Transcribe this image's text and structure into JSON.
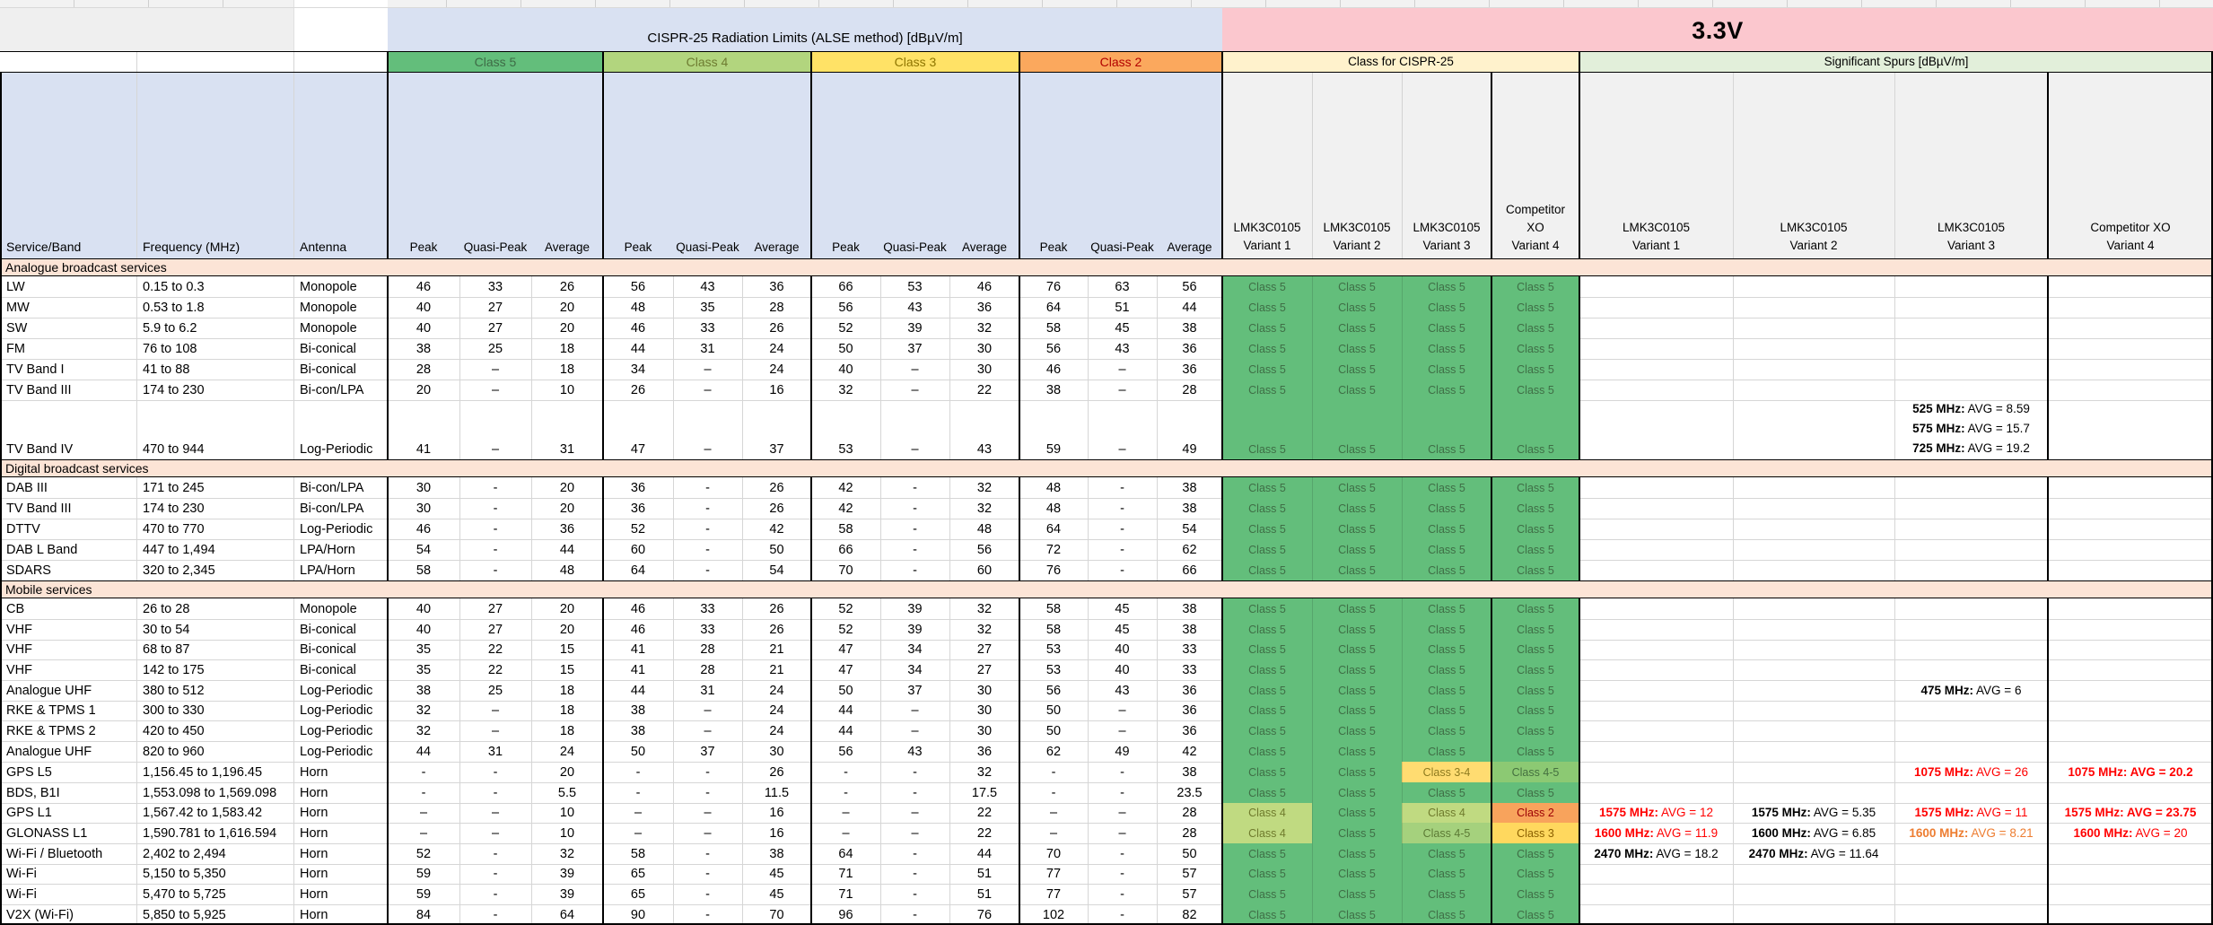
{
  "header": {
    "cispr_title": "CISPR-25 Radiation Limits (ALSE method) [dBµV/m]",
    "voltage_label": "3.3V",
    "class_groups": [
      "Class 5",
      "Class 4",
      "Class 3",
      "Class 2"
    ],
    "class_for_cispr_label": "Class for CISPR-25",
    "spurs_label": "Significant Spurs  [dBµV/m]",
    "left_columns": [
      "Service/Band",
      "Frequency (MHz)",
      "Antenna"
    ],
    "limit_sublabels": [
      "Peak",
      "Quasi-Peak",
      "Average"
    ],
    "class_variant_headers": [
      [
        "LMK3C0105",
        "Variant 1"
      ],
      [
        "LMK3C0105",
        "Variant 2"
      ],
      [
        "LMK3C0105",
        "Variant 3"
      ],
      [
        "Competitor",
        "XO",
        "Variant 4"
      ]
    ],
    "spur_variant_headers": [
      [
        "LMK3C0105",
        "Variant 1"
      ],
      [
        "LMK3C0105",
        "Variant 2"
      ],
      [
        "LMK3C0105",
        "Variant 3"
      ],
      [
        "Competitor XO",
        "Variant 4"
      ]
    ]
  },
  "colors": {
    "lavender": "#D9E1F2",
    "pink": "#FBC7CE",
    "peach": "#FCE4D6",
    "cream": "#FFF2CC",
    "spur_header_green": "#E2EFDA",
    "variant_area_gray": "#F1F1F1",
    "grid_light": "#D6D6D6",
    "black": "#000000",
    "spur_red": "#FF0000",
    "spur_orange": "#ED7D31",
    "spur_black": "#000000"
  },
  "group_header_styles": {
    "h5": {
      "bg": "#63BE7B",
      "fg": "#3E6B46"
    },
    "h4": {
      "bg": "#B2D57E",
      "fg": "#6E7C31"
    },
    "h3": {
      "bg": "#FFE266",
      "fg": "#8E7500"
    },
    "h2": {
      "bg": "#FBA85D",
      "fg": "#B20000"
    }
  },
  "class_styles": {
    "c5": {
      "label": "Class 5",
      "bg": "#63BE7B",
      "fg": "#3F6E46"
    },
    "c4": {
      "label": "Class 4",
      "bg": "#C0DA81",
      "fg": "#6F7B2D"
    },
    "c34": {
      "label": "Class 3-4",
      "bg": "#FFDC71",
      "fg": "#8D7A1F"
    },
    "c45a": {
      "label": "Class 4-5",
      "bg": "#8CC973",
      "fg": "#44703F"
    },
    "c45b": {
      "label": "Class 4-5",
      "bg": "#A5D17D",
      "fg": "#5C7A35"
    },
    "c2": {
      "label": "Class 2",
      "bg": "#F8A35C",
      "fg": "#9C0006"
    },
    "c3": {
      "label": "Class 3",
      "bg": "#FFD85E",
      "fg": "#8A5F00"
    }
  },
  "sections": [
    {
      "title": "Analogue broadcast services",
      "rows": [
        {
          "service": "LW",
          "freq": "0.15 to 0.3",
          "antenna": "Monopole",
          "limits": [
            "46",
            "33",
            "26",
            "56",
            "43",
            "36",
            "66",
            "53",
            "46",
            "76",
            "63",
            "56"
          ],
          "classes": [
            "c5",
            "c5",
            "c5",
            "c5"
          ]
        },
        {
          "service": "MW",
          "freq": "0.53 to 1.8",
          "antenna": "Monopole",
          "limits": [
            "40",
            "27",
            "20",
            "48",
            "35",
            "28",
            "56",
            "43",
            "36",
            "64",
            "51",
            "44"
          ],
          "classes": [
            "c5",
            "c5",
            "c5",
            "c5"
          ]
        },
        {
          "service": "SW",
          "freq": "5.9 to 6.2",
          "antenna": "Monopole",
          "limits": [
            "40",
            "27",
            "20",
            "46",
            "33",
            "26",
            "52",
            "39",
            "32",
            "58",
            "45",
            "38"
          ],
          "classes": [
            "c5",
            "c5",
            "c5",
            "c5"
          ]
        },
        {
          "service": "FM",
          "freq": "76 to 108",
          "antenna": "Bi-conical",
          "limits": [
            "38",
            "25",
            "18",
            "44",
            "31",
            "24",
            "50",
            "37",
            "30",
            "56",
            "43",
            "36"
          ],
          "classes": [
            "c5",
            "c5",
            "c5",
            "c5"
          ]
        },
        {
          "service": "TV Band I",
          "freq": "41 to 88",
          "antenna": "Bi-conical",
          "limits": [
            "28",
            "–",
            "18",
            "34",
            "–",
            "24",
            "40",
            "–",
            "30",
            "46",
            "–",
            "36"
          ],
          "classes": [
            "c5",
            "c5",
            "c5",
            "c5"
          ]
        },
        {
          "service": "TV Band III",
          "freq": "174 to 230",
          "antenna": "Bi-con/LPA",
          "limits": [
            "20",
            "–",
            "10",
            "26",
            "–",
            "16",
            "32",
            "–",
            "22",
            "38",
            "–",
            "28"
          ],
          "classes": [
            "c5",
            "c5",
            "c5",
            "c5"
          ]
        },
        {
          "service": "TV Band IV",
          "freq": "470 to 944",
          "antenna": "Log-Periodic",
          "limits": [
            "41",
            "–",
            "31",
            "47",
            "–",
            "37",
            "53",
            "–",
            "43",
            "59",
            "–",
            "49"
          ],
          "classes": [
            "c5",
            "c5",
            "c5",
            "c5"
          ],
          "spurs": [
            [],
            [],
            [
              {
                "f": "525 MHz:",
                "v": "AVG = 8.59",
                "c": "k"
              },
              {
                "f": "575 MHz:",
                "v": "AVG = 15.7",
                "c": "k"
              },
              {
                "f": "725 MHz:",
                "v": "AVG = 19.2",
                "c": "k"
              }
            ],
            []
          ]
        }
      ]
    },
    {
      "title": "Digital broadcast services",
      "rows": [
        {
          "service": "DAB III",
          "freq": "171 to 245",
          "antenna": "Bi-con/LPA",
          "limits": [
            "30",
            "-",
            "20",
            "36",
            "-",
            "26",
            "42",
            "-",
            "32",
            "48",
            "-",
            "38"
          ],
          "classes": [
            "c5",
            "c5",
            "c5",
            "c5"
          ]
        },
        {
          "service": "TV Band III",
          "freq": "174 to 230",
          "antenna": "Bi-con/LPA",
          "limits": [
            "30",
            "-",
            "20",
            "36",
            "-",
            "26",
            "42",
            "-",
            "32",
            "48",
            "-",
            "38"
          ],
          "classes": [
            "c5",
            "c5",
            "c5",
            "c5"
          ]
        },
        {
          "service": "DTTV",
          "freq": "470 to 770",
          "antenna": "Log-Periodic",
          "limits": [
            "46",
            "-",
            "36",
            "52",
            "-",
            "42",
            "58",
            "-",
            "48",
            "64",
            "-",
            "54"
          ],
          "classes": [
            "c5",
            "c5",
            "c5",
            "c5"
          ]
        },
        {
          "service": "DAB L Band",
          "freq": "447 to 1,494",
          "antenna": "LPA/Horn",
          "limits": [
            "54",
            "-",
            "44",
            "60",
            "-",
            "50",
            "66",
            "-",
            "56",
            "72",
            "-",
            "62"
          ],
          "classes": [
            "c5",
            "c5",
            "c5",
            "c5"
          ]
        },
        {
          "service": "SDARS",
          "freq": "320 to 2,345",
          "antenna": "LPA/Horn",
          "limits": [
            "58",
            "-",
            "48",
            "64",
            "-",
            "54",
            "70",
            "-",
            "60",
            "76",
            "-",
            "66"
          ],
          "classes": [
            "c5",
            "c5",
            "c5",
            "c5"
          ]
        }
      ]
    },
    {
      "title": "Mobile services",
      "rows": [
        {
          "service": "CB",
          "freq": "26 to 28",
          "antenna": "Monopole",
          "limits": [
            "40",
            "27",
            "20",
            "46",
            "33",
            "26",
            "52",
            "39",
            "32",
            "58",
            "45",
            "38"
          ],
          "classes": [
            "c5",
            "c5",
            "c5",
            "c5"
          ]
        },
        {
          "service": "VHF",
          "freq": "30 to 54",
          "antenna": "Bi-conical",
          "limits": [
            "40",
            "27",
            "20",
            "46",
            "33",
            "26",
            "52",
            "39",
            "32",
            "58",
            "45",
            "38"
          ],
          "classes": [
            "c5",
            "c5",
            "c5",
            "c5"
          ]
        },
        {
          "service": "VHF",
          "freq": "68 to 87",
          "antenna": "Bi-conical",
          "limits": [
            "35",
            "22",
            "15",
            "41",
            "28",
            "21",
            "47",
            "34",
            "27",
            "53",
            "40",
            "33"
          ],
          "classes": [
            "c5",
            "c5",
            "c5",
            "c5"
          ]
        },
        {
          "service": "VHF",
          "freq": "142 to 175",
          "antenna": "Bi-conical",
          "limits": [
            "35",
            "22",
            "15",
            "41",
            "28",
            "21",
            "47",
            "34",
            "27",
            "53",
            "40",
            "33"
          ],
          "classes": [
            "c5",
            "c5",
            "c5",
            "c5"
          ]
        },
        {
          "service": "Analogue UHF",
          "freq": "380 to 512",
          "antenna": "Log-Periodic",
          "limits": [
            "38",
            "25",
            "18",
            "44",
            "31",
            "24",
            "50",
            "37",
            "30",
            "56",
            "43",
            "36"
          ],
          "classes": [
            "c5",
            "c5",
            "c5",
            "c5"
          ],
          "spurs": [
            [],
            [],
            [
              {
                "f": "475 MHz:",
                "v": "AVG = 6",
                "c": "k"
              }
            ],
            []
          ]
        },
        {
          "service": "RKE & TPMS 1",
          "freq": "300 to 330",
          "antenna": "Log-Periodic",
          "limits": [
            "32",
            "–",
            "18",
            "38",
            "–",
            "24",
            "44",
            "–",
            "30",
            "50",
            "–",
            "36"
          ],
          "classes": [
            "c5",
            "c5",
            "c5",
            "c5"
          ]
        },
        {
          "service": "RKE & TPMS 2",
          "freq": "420 to 450",
          "antenna": "Log-Periodic",
          "limits": [
            "32",
            "–",
            "18",
            "38",
            "–",
            "24",
            "44",
            "–",
            "30",
            "50",
            "–",
            "36"
          ],
          "classes": [
            "c5",
            "c5",
            "c5",
            "c5"
          ]
        },
        {
          "service": "Analogue UHF",
          "freq": "820 to 960",
          "antenna": "Log-Periodic",
          "limits": [
            "44",
            "31",
            "24",
            "50",
            "37",
            "30",
            "56",
            "43",
            "36",
            "62",
            "49",
            "42"
          ],
          "classes": [
            "c5",
            "c5",
            "c5",
            "c5"
          ]
        },
        {
          "service": "GPS L5",
          "freq": "1,156.45 to 1,196.45",
          "antenna": "Horn",
          "limits": [
            "-",
            "-",
            "20",
            "-",
            "-",
            "26",
            "-",
            "-",
            "32",
            "-",
            "-",
            "38"
          ],
          "classes": [
            "c5",
            "c5",
            "c34",
            "c45a"
          ],
          "spurs": [
            [],
            [],
            [
              {
                "f": "1075 MHz:",
                "v": "AVG = 26",
                "c": "r"
              }
            ],
            [
              {
                "f": "1075 MHz:",
                "v": "AVG = 20.2",
                "c": "r",
                "b": true
              }
            ]
          ]
        },
        {
          "service": "BDS, B1I",
          "freq": "1,553.098 to 1,569.098",
          "antenna": "Horn",
          "limits": [
            "-",
            "-",
            "5.5",
            "-",
            "-",
            "11.5",
            "-",
            "-",
            "17.5",
            "-",
            "-",
            "23.5"
          ],
          "classes": [
            "c5",
            "c5",
            "c5",
            "c5"
          ]
        },
        {
          "service": "GPS L1",
          "freq": "1,567.42 to 1,583.42",
          "antenna": "Horn",
          "limits": [
            "–",
            "–",
            "10",
            "–",
            "–",
            "16",
            "–",
            "–",
            "22",
            "–",
            "–",
            "28"
          ],
          "classes": [
            "c4",
            "c5",
            "c4",
            "c2"
          ],
          "spurs": [
            [
              {
                "f": "1575 MHz:",
                "v": "AVG = 12",
                "c": "r"
              }
            ],
            [
              {
                "f": "1575 MHz:",
                "v": "AVG = 5.35",
                "c": "k"
              }
            ],
            [
              {
                "f": "1575 MHz:",
                "v": "AVG = 11",
                "c": "r"
              }
            ],
            [
              {
                "f": "1575 MHz:",
                "v": "AVG = 23.75",
                "c": "r",
                "b": true
              }
            ]
          ]
        },
        {
          "service": "GLONASS L1",
          "freq": "1,590.781 to 1,616.594",
          "antenna": "Horn",
          "limits": [
            "–",
            "–",
            "10",
            "–",
            "–",
            "16",
            "–",
            "–",
            "22",
            "–",
            "–",
            "28"
          ],
          "classes": [
            "c4",
            "c5",
            "c45b",
            "c3"
          ],
          "spurs": [
            [
              {
                "f": "1600 MHz:",
                "v": "AVG = 11.9",
                "c": "r"
              }
            ],
            [
              {
                "f": "1600 MHz:",
                "v": "AVG = 6.85",
                "c": "k"
              }
            ],
            [
              {
                "f": "1600 MHz:",
                "v": "AVG = 8.21",
                "c": "o"
              }
            ],
            [
              {
                "f": "1600 MHz:",
                "v": "AVG = 20",
                "c": "r"
              }
            ]
          ]
        },
        {
          "service": "Wi-Fi / Bluetooth",
          "freq": "2,402 to 2,494",
          "antenna": "Horn",
          "limits": [
            "52",
            "-",
            "32",
            "58",
            "-",
            "38",
            "64",
            "-",
            "44",
            "70",
            "-",
            "50"
          ],
          "classes": [
            "c5",
            "c5",
            "c5",
            "c5"
          ],
          "spurs": [
            [
              {
                "f": "2470 MHz:",
                "v": "AVG = 18.2",
                "c": "k"
              }
            ],
            [
              {
                "f": "2470 MHz:",
                "v": "AVG = 11.64",
                "c": "k"
              }
            ],
            [],
            []
          ]
        },
        {
          "service": "Wi-Fi",
          "freq": "5,150 to 5,350",
          "antenna": "Horn",
          "limits": [
            "59",
            "-",
            "39",
            "65",
            "-",
            "45",
            "71",
            "-",
            "51",
            "77",
            "-",
            "57"
          ],
          "classes": [
            "c5",
            "c5",
            "c5",
            "c5"
          ]
        },
        {
          "service": "Wi-Fi",
          "freq": "5,470 to 5,725",
          "antenna": "Horn",
          "limits": [
            "59",
            "-",
            "39",
            "65",
            "-",
            "45",
            "71",
            "-",
            "51",
            "77",
            "-",
            "57"
          ],
          "classes": [
            "c5",
            "c5",
            "c5",
            "c5"
          ]
        },
        {
          "service": "V2X (Wi-Fi)",
          "freq": "5,850 to 5,925",
          "antenna": "Horn",
          "limits": [
            "84",
            "-",
            "64",
            "90",
            "-",
            "70",
            "96",
            "-",
            "76",
            "102",
            "-",
            "82"
          ],
          "classes": [
            "c5",
            "c5",
            "c5",
            "c5"
          ]
        }
      ]
    }
  ]
}
